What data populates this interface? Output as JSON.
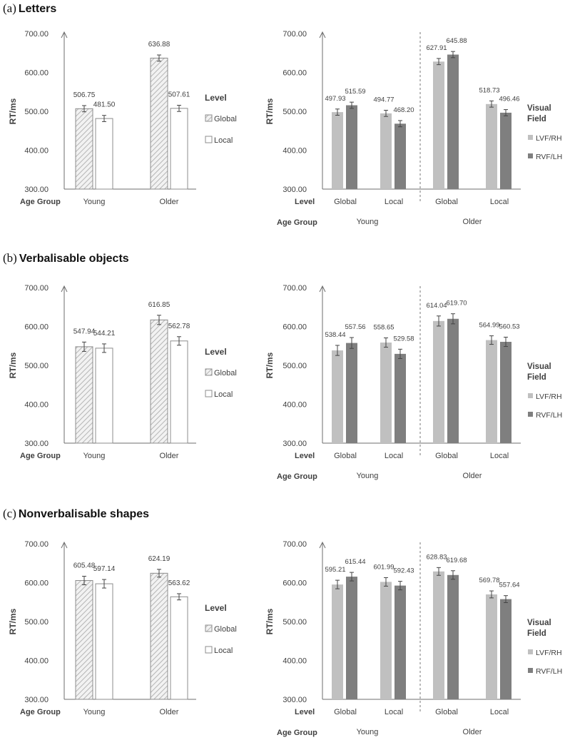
{
  "colors": {
    "global_stroke": "#8c8c8c",
    "global_hatch": "#b5b5b5",
    "local_fill": "#ffffff",
    "lvf": "#c0c0c0",
    "rvf": "#7f7f7f",
    "axis": "#6e6e6e",
    "text": "#404040"
  },
  "panels": [
    {
      "letter": "(a)",
      "title": "Letters",
      "left_chart": {
        "type": "bar",
        "ylabel": "RT/ms",
        "xlabel": "Age Group",
        "ylim": [
          300,
          700
        ],
        "yticks": [
          "300.00",
          "400.00",
          "500.00",
          "600.00",
          "700.00"
        ],
        "categories": [
          "Young",
          "Older"
        ],
        "legend_title": "Level",
        "series": [
          {
            "name": "Global",
            "values": [
              506.75,
              636.88
            ],
            "labels": [
              "506.75",
              "636.88"
            ],
            "errors": [
              8,
              8
            ]
          },
          {
            "name": "Local",
            "values": [
              481.5,
              507.61
            ],
            "labels": [
              "481.50",
              "507.61"
            ],
            "errors": [
              8,
              8
            ]
          }
        ]
      },
      "right_chart": {
        "type": "bar",
        "ylabel": "RT/ms",
        "level_label": "Level",
        "age_label": "Age Group",
        "ylim": [
          300,
          700
        ],
        "yticks": [
          "300.00",
          "400.00",
          "500.00",
          "600.00",
          "700.00"
        ],
        "categories": [
          "Global",
          "Local",
          "Global",
          "Local"
        ],
        "groups": [
          "Young",
          "Older"
        ],
        "legend_title_1": "Visual",
        "legend_title_2": "Field",
        "series": [
          {
            "name": "LVF/RH",
            "values": [
              497.93,
              494.77,
              627.91,
              518.73
            ],
            "labels": [
              "497.93",
              "494.77",
              "627.91",
              "518.73"
            ],
            "errors": [
              8,
              8,
              8,
              8
            ]
          },
          {
            "name": "RVF/LH",
            "values": [
              515.59,
              468.2,
              645.88,
              496.46
            ],
            "labels": [
              "515.59",
              "468.20",
              "645.88",
              "496.46"
            ],
            "errors": [
              8,
              8,
              8,
              8
            ]
          }
        ]
      }
    },
    {
      "letter": "(b)",
      "title": "Verbalisable objects",
      "left_chart": {
        "type": "bar",
        "ylabel": "RT/ms",
        "xlabel": "Age Group",
        "ylim": [
          300,
          700
        ],
        "yticks": [
          "300.00",
          "400.00",
          "500.00",
          "600.00",
          "700.00"
        ],
        "categories": [
          "Young",
          "Older"
        ],
        "legend_title": "Level",
        "series": [
          {
            "name": "Global",
            "values": [
              547.94,
              616.85
            ],
            "labels": [
              "547.94",
              "616.85"
            ],
            "errors": [
              12,
              12
            ]
          },
          {
            "name": "Local",
            "values": [
              544.21,
              562.78
            ],
            "labels": [
              "544.21",
              "562.78"
            ],
            "errors": [
              11,
              11
            ]
          }
        ]
      },
      "right_chart": {
        "type": "bar",
        "ylabel": "RT/ms",
        "level_label": "Level",
        "age_label": "Age Group",
        "ylim": [
          300,
          700
        ],
        "yticks": [
          "300.00",
          "400.00",
          "500.00",
          "600.00",
          "700.00"
        ],
        "categories": [
          "Global",
          "Local",
          "Global",
          "Local"
        ],
        "groups": [
          "Young",
          "Older"
        ],
        "legend_title_1": "Visual",
        "legend_title_2": "Field",
        "series": [
          {
            "name": "LVF/RH",
            "values": [
              538.44,
              558.65,
              614.04,
              564.99
            ],
            "labels": [
              "538.44",
              "558.65",
              "614.04",
              "564.99"
            ],
            "errors": [
              13,
              12,
              13,
              11
            ]
          },
          {
            "name": "RVF/LH",
            "values": [
              557.56,
              529.58,
              619.7,
              560.53
            ],
            "labels": [
              "557.56",
              "529.58",
              "619.70",
              "560.53"
            ],
            "errors": [
              14,
              12,
              13,
              12
            ]
          }
        ]
      }
    },
    {
      "letter": "(c)",
      "title": "Nonverbalisable shapes",
      "left_chart": {
        "type": "bar",
        "ylabel": "RT/ms",
        "xlabel": "Age Group",
        "ylim": [
          300,
          700
        ],
        "yticks": [
          "300.00",
          "400.00",
          "500.00",
          "600.00",
          "700.00"
        ],
        "categories": [
          "Young",
          "Older"
        ],
        "legend_title": "Level",
        "series": [
          {
            "name": "Global",
            "values": [
              605.48,
              624.19
            ],
            "labels": [
              "605.48",
              "624.19"
            ],
            "errors": [
              11,
              10
            ]
          },
          {
            "name": "Local",
            "values": [
              597.14,
              563.62
            ],
            "labels": [
              "597.14",
              "563.62"
            ],
            "errors": [
              11,
              8
            ]
          }
        ]
      },
      "right_chart": {
        "type": "bar",
        "ylabel": "RT/ms",
        "level_label": "Level",
        "age_label": "Age Group",
        "ylim": [
          300,
          700
        ],
        "yticks": [
          "300.00",
          "400.00",
          "500.00",
          "600.00",
          "700.00"
        ],
        "categories": [
          "Global",
          "Local",
          "Global",
          "Local"
        ],
        "groups": [
          "Young",
          "Older"
        ],
        "legend_title_1": "Visual",
        "legend_title_2": "Field",
        "series": [
          {
            "name": "LVF/RH",
            "values": [
              595.21,
              601.99,
              628.83,
              569.78
            ],
            "labels": [
              "595.21",
              "601.99",
              "628.83",
              "569.78"
            ],
            "errors": [
              11,
              11,
              10,
              9
            ]
          },
          {
            "name": "RVF/LH",
            "values": [
              615.44,
              592.43,
              619.68,
              557.64
            ],
            "labels": [
              "615.44",
              "592.43",
              "619.68",
              "557.64"
            ],
            "errors": [
              11,
              11,
              11,
              9
            ]
          }
        ]
      }
    }
  ]
}
